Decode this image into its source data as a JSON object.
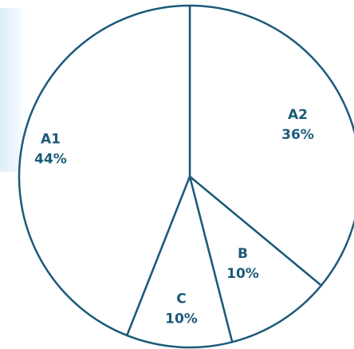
{
  "chart_data": {
    "type": "pie",
    "title": "",
    "slices": [
      {
        "label": "A2",
        "value": 36,
        "display": "36%"
      },
      {
        "label": "B",
        "value": 10,
        "display": "10%"
      },
      {
        "label": "C",
        "value": 10,
        "display": "10%"
      },
      {
        "label": "A1",
        "value": 44,
        "display": "44%"
      }
    ],
    "colors": {
      "stroke": "#1c5a7a",
      "fill": "#ffffff",
      "text": "#1c5a7a",
      "glow": "#dcedfb"
    }
  }
}
